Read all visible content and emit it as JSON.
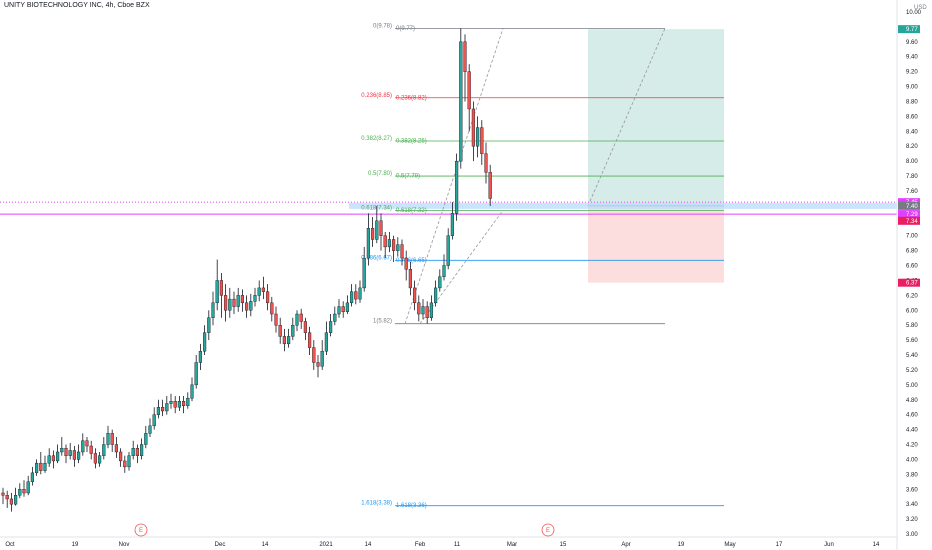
{
  "header": {
    "title": "UNITY BIOTECHNOLOGY INC, 4h, Cboe BZX",
    "currency": "USD"
  },
  "colors": {
    "up": "#26a69a",
    "down": "#ef5350",
    "candle": "#131722",
    "fib_gray": "#787b86",
    "fib_red": "#f23645",
    "fib_green": "#4caf50",
    "fib_blue": "#2196f3",
    "profit_fill": "#d6ece8",
    "stop_fill": "#fcdede",
    "entry_band": "#bbdefb",
    "magenta": "#e040fb"
  },
  "chart_data": {
    "type": "candlestick",
    "title": "UNITY BIOTECHNOLOGY INC, 4h, Cboe BZX",
    "ylim": [
      3.0,
      10.0
    ],
    "y_ticks": [
      "10.00",
      "9.60",
      "9.40",
      "9.20",
      "9.00",
      "8.80",
      "8.60",
      "8.40",
      "8.20",
      "8.00",
      "7.80",
      "7.60",
      "7.20",
      "7.00",
      "6.80",
      "6.60",
      "6.40",
      "6.20",
      "6.00",
      "5.80",
      "5.60",
      "5.40",
      "5.20",
      "5.00",
      "4.80",
      "4.60",
      "4.40",
      "4.20",
      "4.00",
      "3.80",
      "3.60",
      "3.40",
      "3.20",
      "3.00"
    ],
    "x_ticks": [
      "Oct",
      "19",
      "Nov",
      "Dec",
      "14",
      "2021",
      "14",
      "Feb",
      "11",
      "Mar",
      "15",
      "Apr",
      "19",
      "May",
      "17",
      "Jun",
      "14"
    ],
    "price_badges": [
      "9.77",
      "7.40",
      "7.34",
      "6.37"
    ],
    "price_labels_partial": [
      "7.45",
      "7.29"
    ],
    "fib_levels": [
      {
        "ratio": "0",
        "label": "0(9.78)",
        "label2": "0(9.77)",
        "price": 9.78,
        "color": "gray"
      },
      {
        "ratio": "0.236",
        "label": "0.236(8.85)",
        "label2": "0.236(8.82)",
        "price": 8.85,
        "color": "red"
      },
      {
        "ratio": "0.382",
        "label": "0.382(8.27)",
        "label2": "0.382(8.25)",
        "price": 8.27,
        "color": "green"
      },
      {
        "ratio": "0.5",
        "label": "0.5(7.80)",
        "label2": "0.5(7.79)",
        "price": 7.8,
        "color": "green"
      },
      {
        "ratio": "0.618",
        "label": "0.618(7.34)",
        "label2": "0.618(7.32)",
        "price": 7.34,
        "color": "green"
      },
      {
        "ratio": "0.786",
        "label": "0.786(6.67)",
        "label2": "0.786(6.65)",
        "price": 6.67,
        "color": "blue"
      },
      {
        "ratio": "1",
        "label": "1(5.82)",
        "label2": "",
        "price": 5.82,
        "color": "gray"
      },
      {
        "ratio": "1.618",
        "label": "1.618(3.38)",
        "label2": "1.618(3.36)",
        "price": 3.38,
        "color": "blue"
      }
    ],
    "position": {
      "entry": 7.4,
      "target": 9.77,
      "stop": 6.37
    },
    "horizontal_lines": [
      7.45,
      7.29
    ],
    "events": [
      "E",
      "E"
    ],
    "candles": [
      [
        3.55,
        3.52,
        3.62,
        3.4
      ],
      [
        3.52,
        3.47,
        3.58,
        3.35
      ],
      [
        3.47,
        3.4,
        3.55,
        3.3
      ],
      [
        3.4,
        3.52,
        3.62,
        3.38
      ],
      [
        3.52,
        3.6,
        3.68,
        3.48
      ],
      [
        3.6,
        3.55,
        3.72,
        3.5
      ],
      [
        3.55,
        3.7,
        3.78,
        3.52
      ],
      [
        3.7,
        3.82,
        3.9,
        3.65
      ],
      [
        3.82,
        3.95,
        4.0,
        3.78
      ],
      [
        3.95,
        3.85,
        4.1,
        3.8
      ],
      [
        3.85,
        3.95,
        4.05,
        3.82
      ],
      [
        3.95,
        4.05,
        4.15,
        3.9
      ],
      [
        4.05,
        3.98,
        4.12,
        3.88
      ],
      [
        3.98,
        4.1,
        4.2,
        3.95
      ],
      [
        4.1,
        4.15,
        4.3,
        4.05
      ],
      [
        4.15,
        4.05,
        4.2,
        3.95
      ],
      [
        4.05,
        4.12,
        4.22,
        4.0
      ],
      [
        4.12,
        4.0,
        4.18,
        3.9
      ],
      [
        4.0,
        4.1,
        4.2,
        3.95
      ],
      [
        4.1,
        4.25,
        4.35,
        4.05
      ],
      [
        4.25,
        4.18,
        4.3,
        4.1
      ],
      [
        4.18,
        4.08,
        4.25,
        4.0
      ],
      [
        4.08,
        3.95,
        4.15,
        3.88
      ],
      [
        3.95,
        4.05,
        4.1,
        3.9
      ],
      [
        4.05,
        4.2,
        4.3,
        4.0
      ],
      [
        4.2,
        4.35,
        4.45,
        4.15
      ],
      [
        4.35,
        4.2,
        4.4,
        4.1
      ],
      [
        4.2,
        4.1,
        4.3,
        4.02
      ],
      [
        4.1,
        3.98,
        4.15,
        3.9
      ],
      [
        3.98,
        3.9,
        4.05,
        3.82
      ],
      [
        3.9,
        4.05,
        4.1,
        3.85
      ],
      [
        4.05,
        4.15,
        4.25,
        4.0
      ],
      [
        4.15,
        4.05,
        4.2,
        3.95
      ],
      [
        4.05,
        4.2,
        4.28,
        4.0
      ],
      [
        4.2,
        4.35,
        4.45,
        4.15
      ],
      [
        4.35,
        4.45,
        4.55,
        4.3
      ],
      [
        4.45,
        4.6,
        4.7,
        4.4
      ],
      [
        4.6,
        4.7,
        4.8,
        4.55
      ],
      [
        4.7,
        4.65,
        4.8,
        4.58
      ],
      [
        4.65,
        4.75,
        4.85,
        4.6
      ],
      [
        4.75,
        4.78,
        4.88,
        4.68
      ],
      [
        4.78,
        4.7,
        4.85,
        4.62
      ],
      [
        4.7,
        4.78,
        4.85,
        4.65
      ],
      [
        4.78,
        4.72,
        4.85,
        4.62
      ],
      [
        4.72,
        4.82,
        4.9,
        4.68
      ],
      [
        4.82,
        5.0,
        5.1,
        4.78
      ],
      [
        5.0,
        5.3,
        5.4,
        4.95
      ],
      [
        5.3,
        5.45,
        5.55,
        5.2
      ],
      [
        5.45,
        5.7,
        5.8,
        5.4
      ],
      [
        5.7,
        5.9,
        6.0,
        5.6
      ],
      [
        5.9,
        6.1,
        6.25,
        5.8
      ],
      [
        6.1,
        6.4,
        6.68,
        6.0
      ],
      [
        6.4,
        6.2,
        6.5,
        5.9
      ],
      [
        6.2,
        6.0,
        6.35,
        5.85
      ],
      [
        6.0,
        6.15,
        6.3,
        5.9
      ],
      [
        6.15,
        6.05,
        6.25,
        5.95
      ],
      [
        6.05,
        6.2,
        6.3,
        5.98
      ],
      [
        6.2,
        6.1,
        6.28,
        5.98
      ],
      [
        6.1,
        6.0,
        6.2,
        5.9
      ],
      [
        6.0,
        6.12,
        6.22,
        5.92
      ],
      [
        6.12,
        6.2,
        6.3,
        6.05
      ],
      [
        6.2,
        6.3,
        6.4,
        6.12
      ],
      [
        6.3,
        6.25,
        6.45,
        6.15
      ],
      [
        6.25,
        6.1,
        6.35,
        6.0
      ],
      [
        6.1,
        5.95,
        6.18,
        5.85
      ],
      [
        5.95,
        5.8,
        6.05,
        5.7
      ],
      [
        5.8,
        5.65,
        5.9,
        5.55
      ],
      [
        5.65,
        5.55,
        5.75,
        5.45
      ],
      [
        5.55,
        5.65,
        5.75,
        5.5
      ],
      [
        5.65,
        5.8,
        5.9,
        5.6
      ],
      [
        5.8,
        5.95,
        6.0,
        5.72
      ],
      [
        5.95,
        5.85,
        6.02,
        5.75
      ],
      [
        5.85,
        5.7,
        5.9,
        5.6
      ],
      [
        5.7,
        5.5,
        5.78,
        5.4
      ],
      [
        5.5,
        5.3,
        5.6,
        5.2
      ],
      [
        5.3,
        5.25,
        5.4,
        5.1
      ],
      [
        5.25,
        5.45,
        5.6,
        5.2
      ],
      [
        5.45,
        5.7,
        5.85,
        5.4
      ],
      [
        5.7,
        5.85,
        5.95,
        5.65
      ],
      [
        5.85,
        5.95,
        6.05,
        5.8
      ],
      [
        5.95,
        6.05,
        6.15,
        5.9
      ],
      [
        6.05,
        5.98,
        6.12,
        5.9
      ],
      [
        5.98,
        6.1,
        6.2,
        5.95
      ],
      [
        6.1,
        6.25,
        6.35,
        6.05
      ],
      [
        6.25,
        6.15,
        6.35,
        6.08
      ],
      [
        6.15,
        6.3,
        6.4,
        6.1
      ],
      [
        6.3,
        6.7,
        6.85,
        6.25
      ],
      [
        6.7,
        7.1,
        7.3,
        6.6
      ],
      [
        7.1,
        6.95,
        7.25,
        6.85
      ],
      [
        6.95,
        7.2,
        7.4,
        6.9
      ],
      [
        7.2,
        7.0,
        7.3,
        6.8
      ],
      [
        7.0,
        6.85,
        7.05,
        6.7
      ],
      [
        6.85,
        6.95,
        7.05,
        6.78
      ],
      [
        6.95,
        6.8,
        7.0,
        6.65
      ],
      [
        6.8,
        6.88,
        6.98,
        6.72
      ],
      [
        6.88,
        6.7,
        6.95,
        6.6
      ],
      [
        6.7,
        6.55,
        6.8,
        6.4
      ],
      [
        6.55,
        6.3,
        6.65,
        6.2
      ],
      [
        6.3,
        6.1,
        6.4,
        6.0
      ],
      [
        6.1,
        5.95,
        6.2,
        5.85
      ],
      [
        5.95,
        6.05,
        6.15,
        5.88
      ],
      [
        6.05,
        5.9,
        6.12,
        5.82
      ],
      [
        5.9,
        6.1,
        6.2,
        5.86
      ],
      [
        6.1,
        6.3,
        6.4,
        6.05
      ],
      [
        6.3,
        6.45,
        6.55,
        6.25
      ],
      [
        6.45,
        6.6,
        6.75,
        6.4
      ],
      [
        6.6,
        7.0,
        7.1,
        6.55
      ],
      [
        7.0,
        7.3,
        7.45,
        6.95
      ],
      [
        7.3,
        8.0,
        8.1,
        7.2
      ],
      [
        8.0,
        9.6,
        9.78,
        7.9
      ],
      [
        9.6,
        9.2,
        9.7,
        8.8
      ],
      [
        9.2,
        8.7,
        9.3,
        8.4
      ],
      [
        8.7,
        8.2,
        8.8,
        8.0
      ],
      [
        8.2,
        8.45,
        8.6,
        8.05
      ],
      [
        8.45,
        8.1,
        8.55,
        7.95
      ],
      [
        8.1,
        7.85,
        8.25,
        7.7
      ],
      [
        7.85,
        7.5,
        7.95,
        7.4
      ]
    ]
  }
}
